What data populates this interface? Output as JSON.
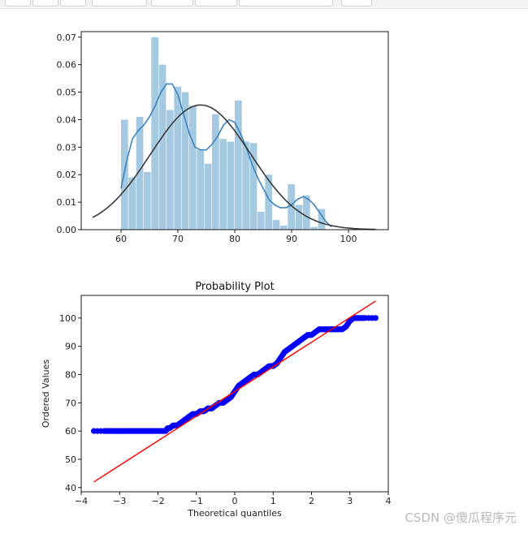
{
  "watermark": "CSDN @傻瓜程序元",
  "chart_data": [
    {
      "type": "histogram",
      "title": "",
      "xlabel": "",
      "ylabel": "",
      "xlim": [
        53,
        107
      ],
      "ylim": [
        0,
        0.072
      ],
      "xticks": [
        60,
        70,
        80,
        90,
        100
      ],
      "yticks": [
        0.0,
        0.01,
        0.02,
        0.03,
        0.04,
        0.05,
        0.06,
        0.07
      ],
      "bin_width": 1.33,
      "bins": [
        {
          "x": 60.0,
          "height": 0.04
        },
        {
          "x": 61.33,
          "height": 0.019
        },
        {
          "x": 62.67,
          "height": 0.041
        },
        {
          "x": 64.0,
          "height": 0.021
        },
        {
          "x": 65.33,
          "height": 0.07
        },
        {
          "x": 66.67,
          "height": 0.06
        },
        {
          "x": 68.0,
          "height": 0.0435
        },
        {
          "x": 69.33,
          "height": 0.052
        },
        {
          "x": 70.67,
          "height": 0.05
        },
        {
          "x": 72.0,
          "height": 0.045
        },
        {
          "x": 73.33,
          "height": 0.029
        },
        {
          "x": 74.67,
          "height": 0.024
        },
        {
          "x": 76.0,
          "height": 0.042
        },
        {
          "x": 77.33,
          "height": 0.033
        },
        {
          "x": 78.67,
          "height": 0.032
        },
        {
          "x": 80.0,
          "height": 0.047
        },
        {
          "x": 81.33,
          "height": 0.032
        },
        {
          "x": 82.67,
          "height": 0.0315
        },
        {
          "x": 84.0,
          "height": 0.0065
        },
        {
          "x": 85.33,
          "height": 0.02
        },
        {
          "x": 86.67,
          "height": 0.0035
        },
        {
          "x": 88.0,
          "height": 0.0015
        },
        {
          "x": 89.33,
          "height": 0.0165
        },
        {
          "x": 90.67,
          "height": 0.009
        },
        {
          "x": 92.0,
          "height": 0.0125
        },
        {
          "x": 93.33,
          "height": 0.001
        },
        {
          "x": 94.67,
          "height": 0.0075
        },
        {
          "x": 96.0,
          "height": 0.0
        }
      ],
      "kde": {
        "x": [
          60,
          61,
          62,
          63,
          64,
          65,
          66,
          67,
          68,
          69,
          70,
          71,
          72,
          73,
          74,
          75,
          76,
          77,
          78,
          79,
          80,
          81,
          82,
          83,
          84,
          85,
          86,
          87,
          88,
          89,
          90,
          91,
          92,
          93,
          94,
          95,
          96,
          97
        ],
        "y": [
          0.015,
          0.025,
          0.033,
          0.036,
          0.038,
          0.041,
          0.045,
          0.05,
          0.053,
          0.053,
          0.049,
          0.042,
          0.035,
          0.03,
          0.029,
          0.029,
          0.031,
          0.034,
          0.038,
          0.04,
          0.039,
          0.035,
          0.03,
          0.024,
          0.019,
          0.015,
          0.011,
          0.009,
          0.008,
          0.008,
          0.009,
          0.011,
          0.012,
          0.011,
          0.009,
          0.006,
          0.003,
          0.001
        ]
      },
      "normal_fit": {
        "mean": 74,
        "std": 8.8
      }
    },
    {
      "type": "scatter",
      "title": "Probability Plot",
      "xlabel": "Theoretical quantiles",
      "ylabel": "Ordered Values",
      "xlim": [
        -4.0,
        4.0
      ],
      "ylim": [
        38.5,
        108
      ],
      "xticks": [
        -4,
        -3,
        -2,
        -1,
        0,
        1,
        2,
        3,
        4
      ],
      "yticks": [
        40,
        50,
        60,
        70,
        80,
        90,
        100
      ],
      "points": {
        "x": [
          -3.67,
          -3.4,
          -3.28,
          -3.18,
          -3.09,
          -3.0,
          -2.9,
          -2.8,
          -2.7,
          -2.6,
          -2.5,
          -2.4,
          -2.3,
          -2.2,
          -2.1,
          -2.0,
          -1.9,
          -1.8,
          -1.75,
          -1.7,
          -1.6,
          -1.5,
          -1.4,
          -1.3,
          -1.2,
          -1.1,
          -1.0,
          -0.9,
          -0.8,
          -0.7,
          -0.6,
          -0.5,
          -0.4,
          -0.3,
          -0.2,
          -0.1,
          0.0,
          0.1,
          0.2,
          0.3,
          0.4,
          0.5,
          0.6,
          0.7,
          0.8,
          0.9,
          1.0,
          1.1,
          1.2,
          1.3,
          1.4,
          1.5,
          1.6,
          1.7,
          1.8,
          1.9,
          2.0,
          2.1,
          2.2,
          2.3,
          2.4,
          2.5,
          2.6,
          2.7,
          2.8,
          2.9,
          3.0,
          3.1,
          3.2,
          3.3,
          3.4,
          3.67
        ],
        "y": [
          60,
          60,
          60,
          60,
          60,
          60,
          60,
          60,
          60,
          60,
          60,
          60,
          60,
          60,
          60,
          60,
          60,
          60,
          61,
          61,
          62,
          62,
          63,
          64,
          65,
          66,
          66,
          67,
          67,
          68,
          68,
          69,
          70,
          70,
          71,
          72,
          74,
          76,
          77,
          78,
          79,
          80,
          80,
          81,
          82,
          83,
          83,
          84,
          86,
          88,
          89,
          90,
          91,
          92,
          93,
          94,
          94,
          95,
          96,
          96,
          96,
          96,
          96,
          96,
          96,
          97,
          99,
          100,
          100,
          100,
          100,
          100
        ]
      },
      "fit_line": {
        "x": [
          -3.67,
          3.67
        ],
        "y": [
          42,
          106
        ]
      }
    }
  ]
}
